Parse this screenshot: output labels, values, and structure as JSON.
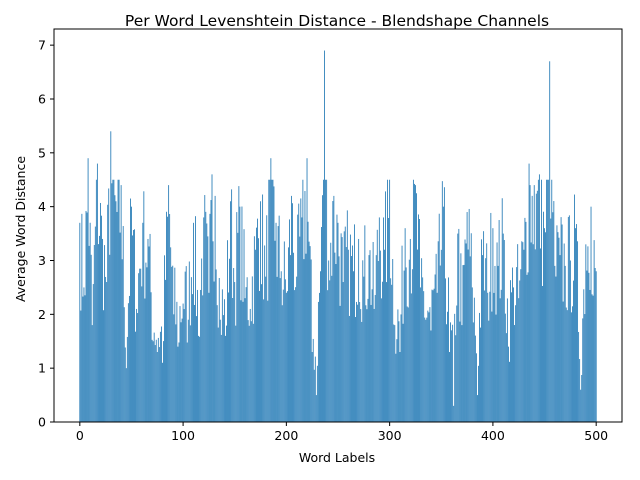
{
  "chart_data": {
    "type": "bar",
    "title": "Per Word Levenshtein Distance - Blendshape Channels",
    "xlabel": "Word Labels",
    "ylabel": "Average Word Distance",
    "xlim": [
      -25,
      525
    ],
    "ylim": [
      0,
      7.3
    ],
    "xticks": [
      "0",
      "100",
      "200",
      "300",
      "400",
      "500"
    ],
    "yticks": [
      "0",
      "1",
      "2",
      "3",
      "4",
      "5",
      "6",
      "7"
    ],
    "bar_color": "#1f77b4",
    "grid": false,
    "legend": "none",
    "n_bars": 501,
    "x": [
      0,
      4,
      8,
      12,
      17,
      22,
      26,
      30,
      35,
      40,
      45,
      50,
      55,
      61,
      66,
      71,
      75,
      80,
      86,
      91,
      95,
      100,
      105,
      110,
      115,
      120,
      125,
      128,
      131,
      136,
      141,
      146,
      150,
      155,
      160,
      165,
      170,
      175,
      180,
      185,
      190,
      195,
      200,
      205,
      210,
      215,
      220,
      225,
      229,
      233,
      237,
      241,
      246,
      250,
      255,
      260,
      265,
      270,
      275,
      280,
      285,
      290,
      295,
      300,
      305,
      310,
      315,
      320,
      325,
      330,
      335,
      340,
      346,
      352,
      358,
      362,
      366,
      370,
      375,
      380,
      385,
      390,
      395,
      400,
      405,
      410,
      415,
      420,
      425,
      430,
      435,
      440,
      445,
      450,
      455,
      460,
      465,
      470,
      475,
      480,
      485,
      490,
      495,
      500
    ],
    "values": [
      3.7,
      2.5,
      4.9,
      1.8,
      4.8,
      3.4,
      2.6,
      5.4,
      4.1,
      4.4,
      1.0,
      4.0,
      2.1,
      3.7,
      3.4,
      1.5,
      1.3,
      1.1,
      4.4,
      2.0,
      1.4,
      2.2,
      1.9,
      3.7,
      1.6,
      3.8,
      2.4,
      4.6,
      4.2,
      1.9,
      1.6,
      4.1,
      2.6,
      4.0,
      2.3,
      2.1,
      3.2,
      4.1,
      2.7,
      4.9,
      3.7,
      2.8,
      2.4,
      4.2,
      2.7,
      3.8,
      4.9,
      1.3,
      0.5,
      2.8,
      6.9,
      3.0,
      4.2,
      3.7,
      2.6,
      3.2,
      2.8,
      3.4,
      2.7,
      3.1,
      2.1,
      3.8,
      3.2,
      4.5,
      1.8,
      1.3,
      3.6,
      3.4,
      4.4,
      2.5,
      1.9,
      1.7,
      2.4,
      4.0,
      1.3,
      0.3,
      3.5,
      1.8,
      3.9,
      2.5,
      0.5,
      3.1,
      2.4,
      3.6,
      2.9,
      3.5,
      1.4,
      2.5,
      2.3,
      3.2,
      4.8,
      4.4,
      4.6,
      3.6,
      6.7,
      2.9,
      3.1,
      2.9,
      3.0,
      3.6,
      0.6,
      3.3,
      4.0,
      2.8
    ]
  }
}
